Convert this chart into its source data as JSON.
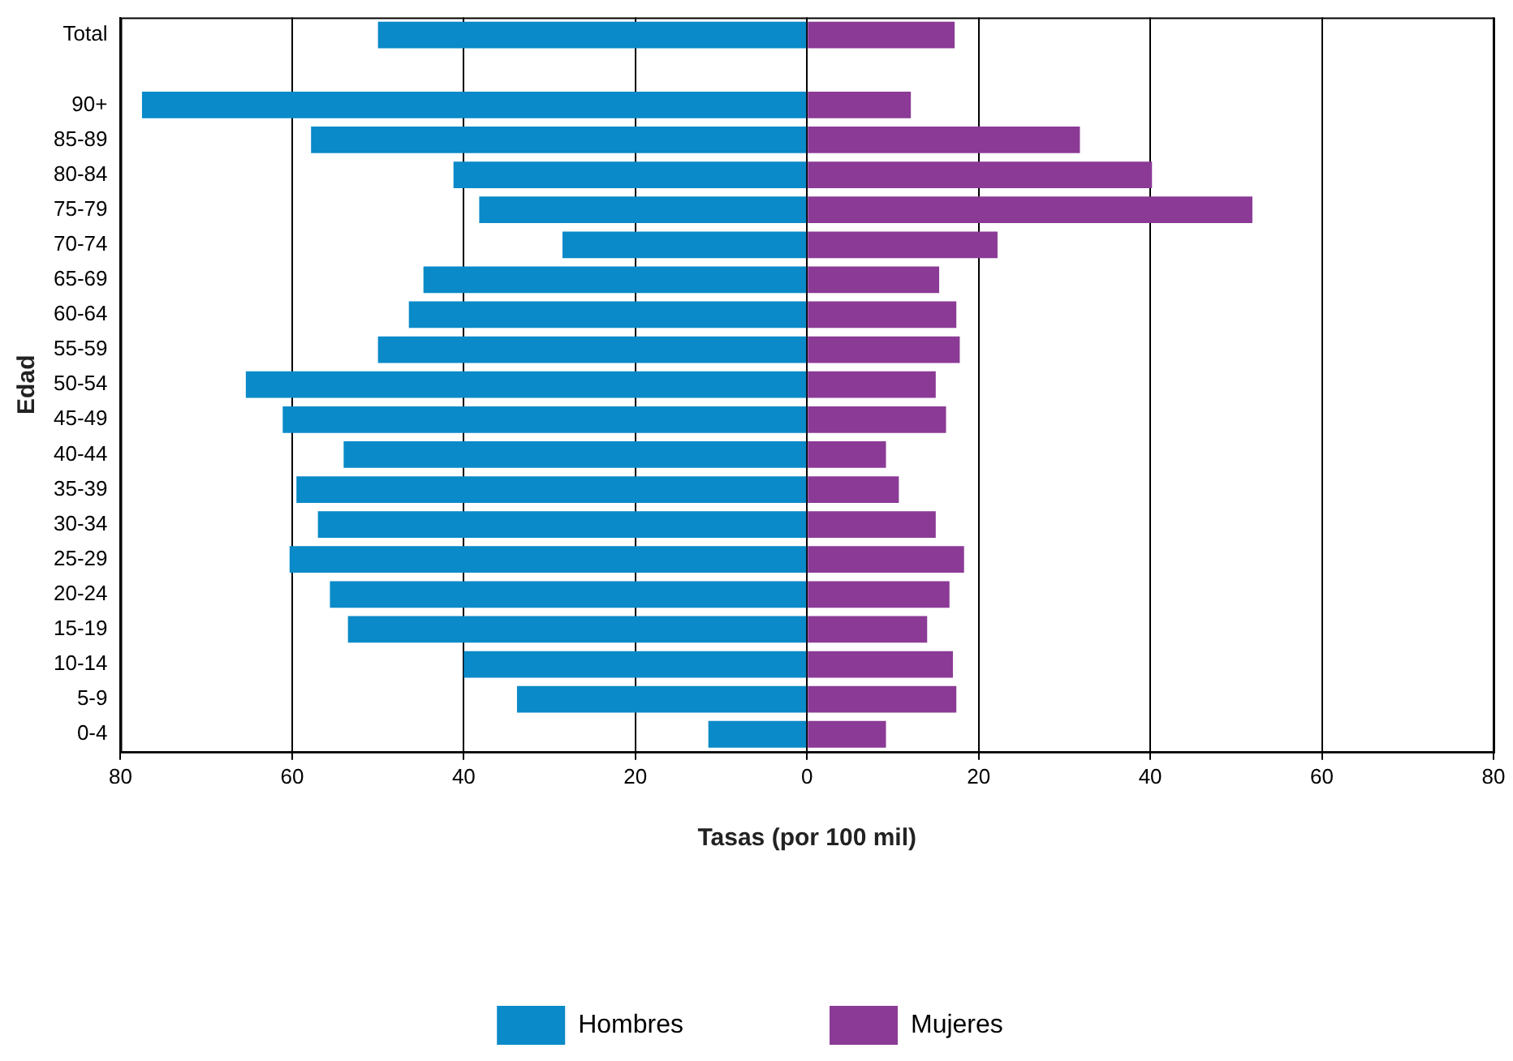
{
  "chart_data": {
    "type": "bar",
    "orientation": "horizontal",
    "stacked": true,
    "categories": [
      "Total",
      null,
      "90+",
      "85-89",
      "80-84",
      "75-79",
      "70-74",
      "65-69",
      "60-64",
      "55-59",
      "50-54",
      "45-49",
      "40-44",
      "35-39",
      "30-34",
      "25-29",
      "20-24",
      "15-19",
      "10-14",
      "5-9",
      "0-4"
    ],
    "series": [
      {
        "name": "Hombres",
        "color": "#0a8ac8",
        "values": [
          -50.0,
          null,
          -77.5,
          -57.8,
          -41.2,
          -38.2,
          -28.5,
          -44.7,
          -46.4,
          -50.0,
          -65.4,
          -61.1,
          -54.0,
          -59.5,
          -57.0,
          -60.3,
          -55.6,
          -53.5,
          -40.0,
          -33.8,
          -11.5
        ]
      },
      {
        "name": "Mujeres",
        "color": "#8b3a96",
        "values": [
          17.2,
          null,
          12.1,
          31.8,
          40.2,
          51.9,
          22.2,
          15.4,
          17.4,
          17.8,
          15.0,
          16.2,
          9.2,
          10.7,
          15.0,
          18.3,
          16.6,
          14.0,
          17.0,
          17.4,
          9.2
        ]
      }
    ],
    "xlim": [
      -80,
      80
    ],
    "xticks": [
      {
        "value": -80,
        "label": "80"
      },
      {
        "value": -60,
        "label": "60"
      },
      {
        "value": -40,
        "label": "40"
      },
      {
        "value": -20,
        "label": "20"
      },
      0,
      20,
      40,
      60,
      80
    ],
    "xlabel": "Tasas (por 100 mil)",
    "ylabel": "Edad",
    "grid": "x",
    "legend": "bottom"
  }
}
